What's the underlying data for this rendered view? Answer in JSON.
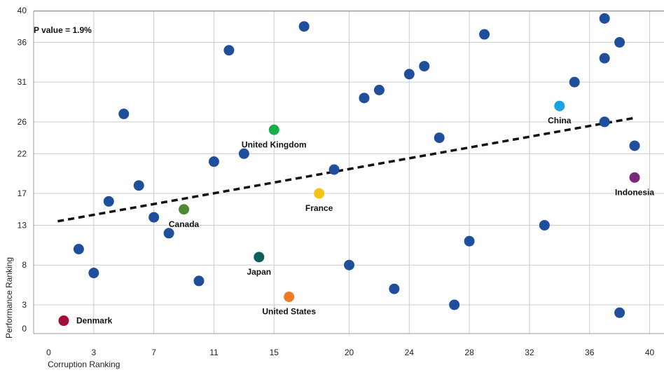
{
  "chart_data": {
    "type": "scatter",
    "title": "",
    "annotation": "P value = 1.9%",
    "xlabel": "Corruption Ranking",
    "ylabel": "Performance Ranking",
    "xlim": [
      0,
      40
    ],
    "ylim": [
      0,
      40
    ],
    "x_ticks": [
      0,
      3,
      7,
      11,
      15,
      20,
      24,
      28,
      32,
      36,
      40
    ],
    "y_ticks": [
      0,
      3,
      8,
      13,
      17,
      22,
      26,
      31,
      36,
      40
    ],
    "grid": true,
    "default_color": "#1f4e9c",
    "points": [
      {
        "x": 1,
        "y": 1,
        "label": "Denmark",
        "color": "#a50d3a"
      },
      {
        "x": 2,
        "y": 10,
        "label": ""
      },
      {
        "x": 3,
        "y": 7,
        "label": ""
      },
      {
        "x": 4,
        "y": 16,
        "label": ""
      },
      {
        "x": 5,
        "y": 27,
        "label": ""
      },
      {
        "x": 6,
        "y": 18,
        "label": ""
      },
      {
        "x": 7,
        "y": 14,
        "label": ""
      },
      {
        "x": 8,
        "y": 12,
        "label": ""
      },
      {
        "x": 9,
        "y": 15,
        "label": "Canada",
        "color": "#4e8a2f"
      },
      {
        "x": 10,
        "y": 6,
        "label": ""
      },
      {
        "x": 11,
        "y": 21,
        "label": ""
      },
      {
        "x": 12,
        "y": 35,
        "label": ""
      },
      {
        "x": 13,
        "y": 22,
        "label": ""
      },
      {
        "x": 14,
        "y": 9,
        "label": "Japan",
        "color": "#0b5e5a"
      },
      {
        "x": 15,
        "y": 25,
        "label": "United Kingdom",
        "color": "#12b04a"
      },
      {
        "x": 16,
        "y": 4,
        "label": "United States",
        "color": "#f07b22"
      },
      {
        "x": 17,
        "y": 38,
        "label": ""
      },
      {
        "x": 18,
        "y": 17,
        "label": "France",
        "color": "#f5c218"
      },
      {
        "x": 19,
        "y": 20,
        "label": ""
      },
      {
        "x": 20,
        "y": 8,
        "label": ""
      },
      {
        "x": 21,
        "y": 29,
        "label": ""
      },
      {
        "x": 22,
        "y": 30,
        "label": ""
      },
      {
        "x": 23,
        "y": 5,
        "label": ""
      },
      {
        "x": 24,
        "y": 32,
        "label": ""
      },
      {
        "x": 25,
        "y": 33,
        "label": ""
      },
      {
        "x": 26,
        "y": 24,
        "label": ""
      },
      {
        "x": 27,
        "y": 3,
        "label": ""
      },
      {
        "x": 28,
        "y": 11,
        "label": ""
      },
      {
        "x": 29,
        "y": 37,
        "label": ""
      },
      {
        "x": 33,
        "y": 13,
        "label": ""
      },
      {
        "x": 34,
        "y": 28,
        "label": "China",
        "color": "#1aa3e0"
      },
      {
        "x": 35,
        "y": 31,
        "label": ""
      },
      {
        "x": 37,
        "y": 39,
        "label": ""
      },
      {
        "x": 37,
        "y": 34,
        "label": ""
      },
      {
        "x": 37,
        "y": 26,
        "label": ""
      },
      {
        "x": 38,
        "y": 36,
        "label": ""
      },
      {
        "x": 38,
        "y": 2,
        "label": ""
      },
      {
        "x": 39,
        "y": 23,
        "label": ""
      },
      {
        "x": 39,
        "y": 19,
        "label": "Indonesia",
        "color": "#7b2a7a"
      }
    ],
    "trendline": {
      "style": "dashed",
      "color": "#111111",
      "x": [
        0.6,
        39
      ],
      "y": [
        13.5,
        26.5
      ]
    }
  }
}
